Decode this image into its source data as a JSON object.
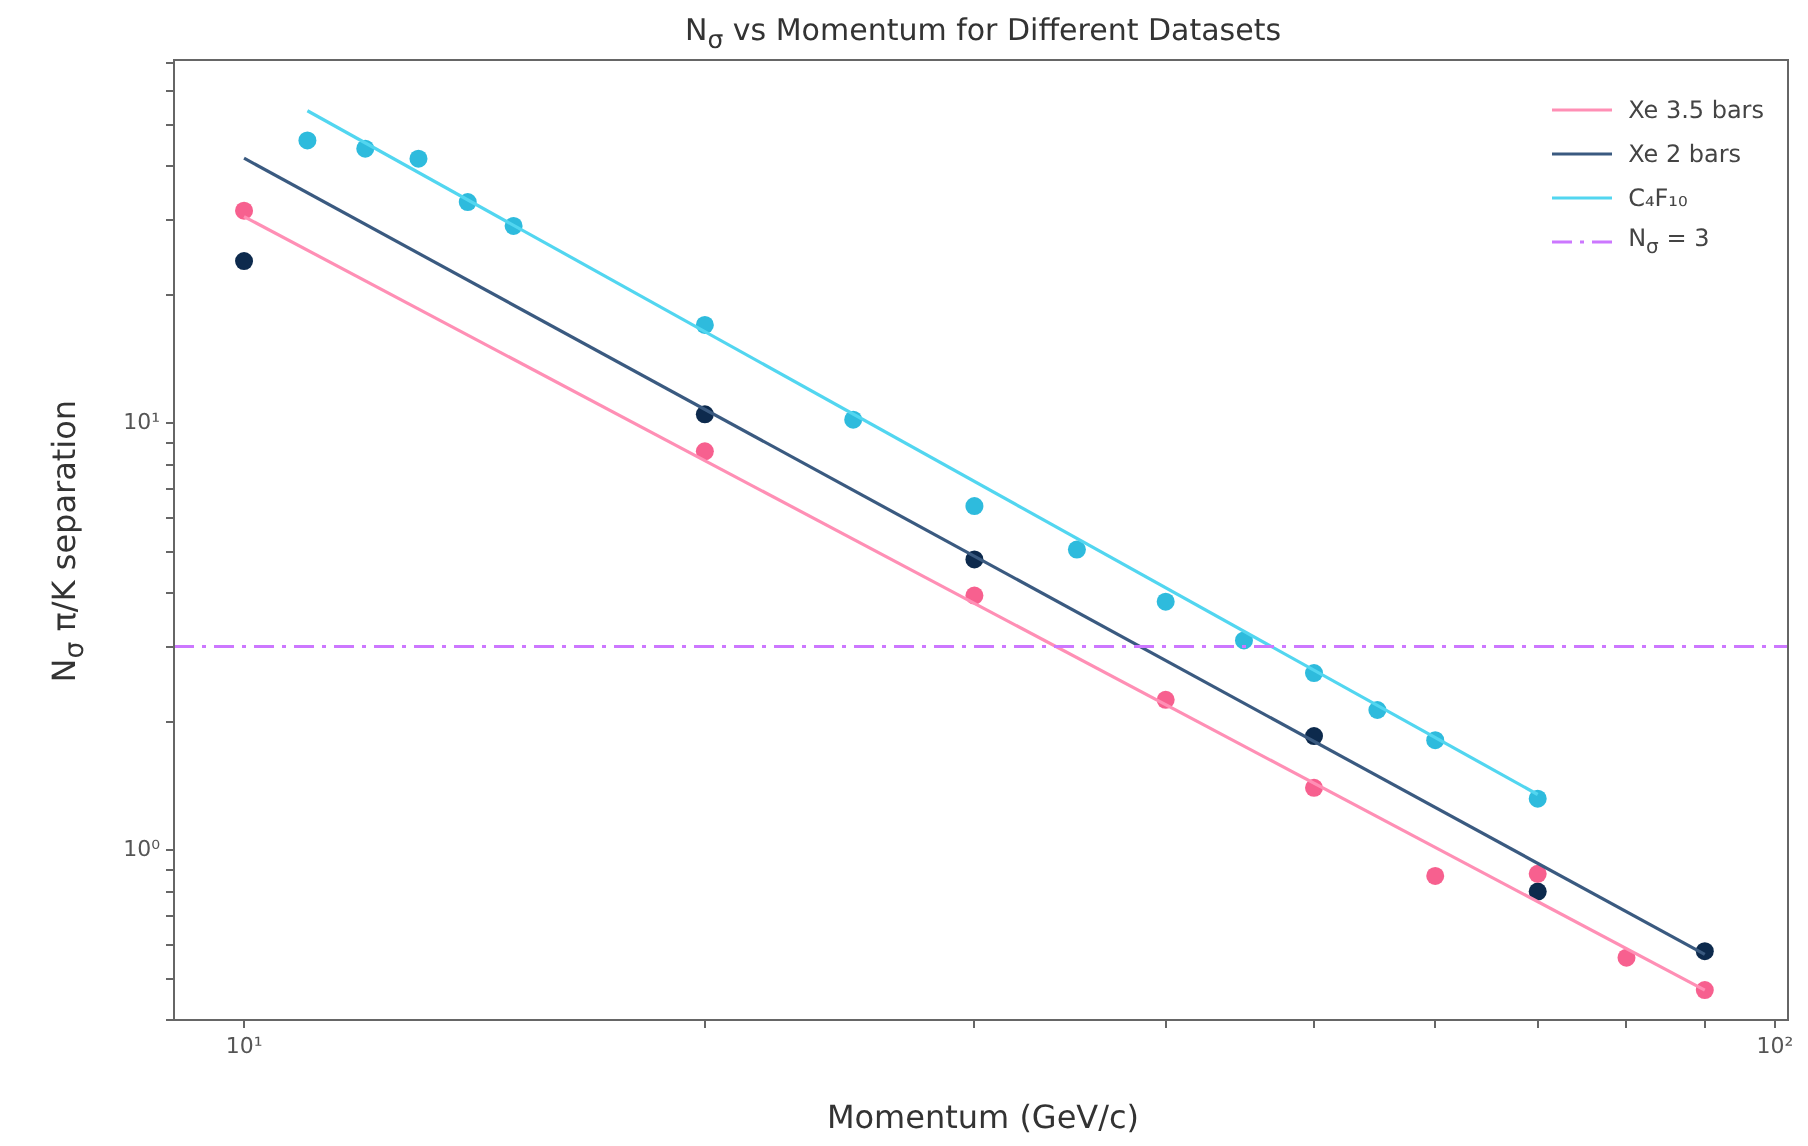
{
  "chart_data": {
    "type": "scatter",
    "title": "N$_{σ}$ vs Momentum for Different Datasets",
    "xlabel": "Momentum (GeV/c)",
    "ylabel": "N$_{σ}$ π/K separation",
    "log": "xy",
    "grid": false,
    "legend": "top right",
    "xlim": [
      9,
      102
    ],
    "xticks": [
      {
        "value": 10,
        "label": "10¹"
      },
      {
        "value": 20,
        "label": null
      },
      {
        "value": 30,
        "label": null
      },
      {
        "value": 40,
        "label": null
      },
      {
        "value": 50,
        "label": null
      },
      {
        "value": 60,
        "label": null
      },
      {
        "value": 70,
        "label": null
      },
      {
        "value": 80,
        "label": null
      },
      {
        "value": 90,
        "label": null
      },
      {
        "value": 100,
        "label": "10²"
      }
    ],
    "ylim": [
      0.4,
      71
    ],
    "yticks": [
      {
        "value": 0.4,
        "label": null
      },
      {
        "value": 0.5,
        "label": null
      },
      {
        "value": 0.6,
        "label": null
      },
      {
        "value": 0.7,
        "label": null
      },
      {
        "value": 0.8,
        "label": null
      },
      {
        "value": 0.9,
        "label": null
      },
      {
        "value": 1,
        "label": "10⁰"
      },
      {
        "value": 2,
        "label": null
      },
      {
        "value": 3,
        "label": null
      },
      {
        "value": 4,
        "label": null
      },
      {
        "value": 5,
        "label": null
      },
      {
        "value": 6,
        "label": null
      },
      {
        "value": 7,
        "label": null
      },
      {
        "value": 8,
        "label": null
      },
      {
        "value": 9,
        "label": null
      },
      {
        "value": 10,
        "label": "10¹"
      },
      {
        "value": 20,
        "label": null
      },
      {
        "value": 30,
        "label": null
      },
      {
        "value": 40,
        "label": null
      },
      {
        "value": 50,
        "label": null
      },
      {
        "value": 60,
        "label": null
      },
      {
        "value": 70,
        "label": null
      }
    ],
    "series": [
      {
        "type": "line",
        "name": "Xe 3.5 bars",
        "color": "#ff8fb5",
        "x": [
          10,
          90
        ],
        "values": [
          30.5,
          0.47
        ]
      },
      {
        "type": "line",
        "name": "Xe 2 bars",
        "color": "#3a5a80",
        "x": [
          10,
          90
        ],
        "values": [
          41.8,
          0.57
        ]
      },
      {
        "type": "line",
        "name": "C₄F₁₀",
        "color": "#52d6f0",
        "x": [
          11,
          70
        ],
        "values": [
          54,
          1.35
        ]
      },
      {
        "type": "scatter",
        "color": "#f7608f",
        "x": [
          10,
          20,
          30,
          40,
          50,
          60,
          70,
          80,
          90
        ],
        "values": [
          31.5,
          8.6,
          3.95,
          2.25,
          1.4,
          0.87,
          0.88,
          0.56,
          0.47
        ]
      },
      {
        "type": "scatter",
        "color": "#0d2a4d",
        "x": [
          10,
          20,
          30,
          50,
          70,
          90
        ],
        "values": [
          24,
          10.5,
          4.8,
          1.85,
          0.8,
          0.58
        ]
      },
      {
        "type": "scatter",
        "color": "#2ebbdd",
        "x": [
          11,
          12,
          13,
          14,
          15,
          20,
          25,
          30,
          35,
          40,
          45,
          50,
          55,
          60,
          70
        ],
        "values": [
          46,
          44,
          41.7,
          33,
          29,
          17,
          10.2,
          6.4,
          5.06,
          3.82,
          3.1,
          2.6,
          2.13,
          1.81,
          1.32
        ]
      }
    ],
    "ref_lines": [
      {
        "axis": "y",
        "value": 3,
        "label": "N$_{σ}$ = 3",
        "color": "#cc77ff",
        "line_style": "dashed"
      }
    ]
  }
}
